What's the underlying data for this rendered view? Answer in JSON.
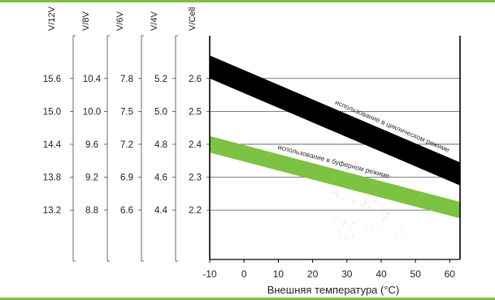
{
  "chart_data": {
    "type": "area",
    "title": "",
    "xlabel": "Внешняя температура  (°C)",
    "xlim": [
      -10,
      63
    ],
    "x_ticks": [
      "-10",
      "0",
      "10",
      "20",
      "30",
      "40",
      "50",
      "60"
    ],
    "x_tick_values": [
      -10,
      0,
      10,
      20,
      30,
      40,
      50,
      60
    ],
    "y_axes": [
      {
        "label": "V/12V",
        "ticks": [
          "15.6",
          "15.0",
          "14.4",
          "13.8",
          "13.2"
        ]
      },
      {
        "label": "V/8V",
        "ticks": [
          "10.4",
          "10.0",
          "9.6",
          "9.2",
          "8.8"
        ]
      },
      {
        "label": "V/6V",
        "ticks": [
          "7.8",
          "7.5",
          "7.2",
          "6.9",
          "6.6"
        ]
      },
      {
        "label": "V/4V",
        "ticks": [
          "5.2",
          "5.0",
          "4.8",
          "4.6",
          "4.4"
        ]
      },
      {
        "label": "V/Cell",
        "ticks": [
          "2.6",
          "2.5",
          "2.4",
          "2.3",
          "2.2"
        ]
      }
    ],
    "y_tick_values": [
      2.6,
      2.5,
      2.4,
      2.3,
      2.2
    ],
    "ylim": [
      2.05,
      2.73
    ],
    "grid": true,
    "series": [
      {
        "name": "использование в циклическом режиме",
        "color": "#000000",
        "x": [
          -10,
          63
        ],
        "upper": [
          2.67,
          2.345
        ],
        "lower": [
          2.6,
          2.275
        ]
      },
      {
        "name": "использование в буферном режиме",
        "color": "#7dc242",
        "x": [
          -10,
          63
        ],
        "upper": [
          2.425,
          2.225
        ],
        "lower": [
          2.375,
          2.175
        ]
      }
    ],
    "colors": {
      "accent": "#7dc242",
      "grid": "#555555",
      "text": "#222222"
    }
  }
}
